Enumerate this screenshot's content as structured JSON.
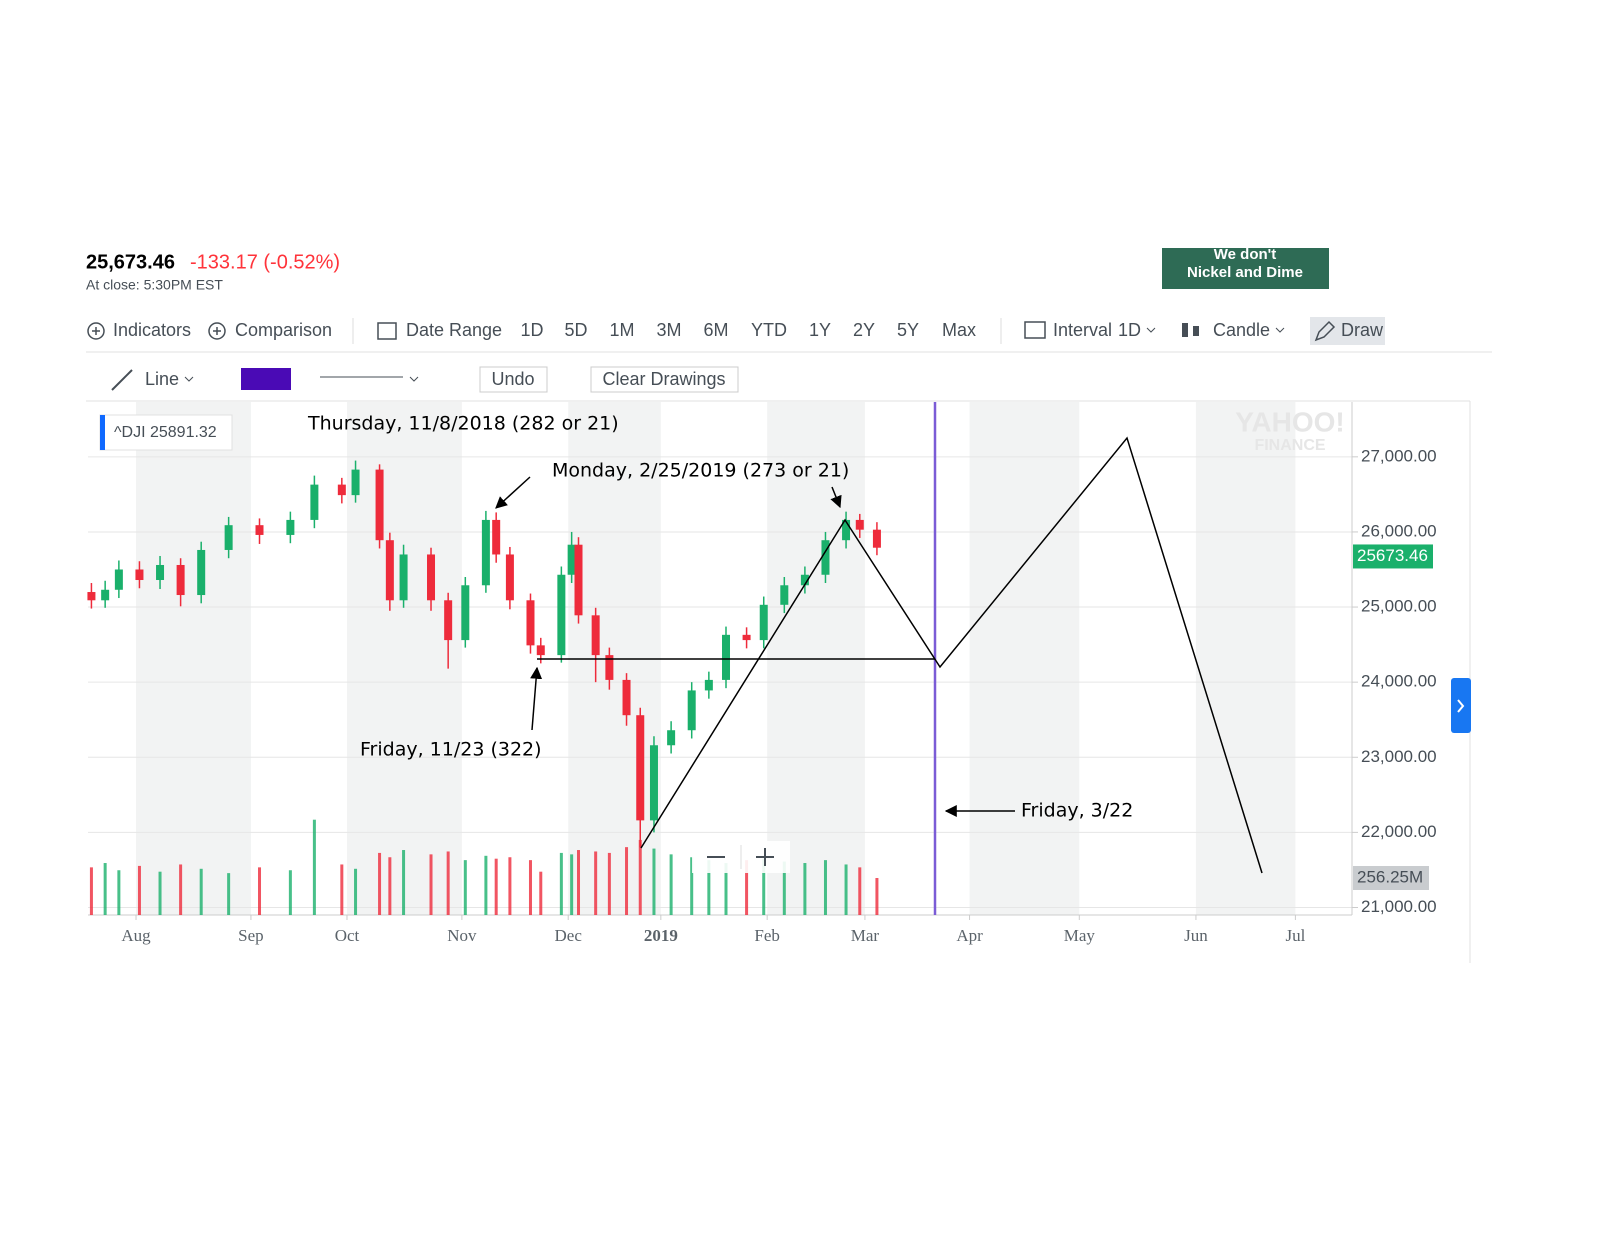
{
  "quote": {
    "price": "25,673.46",
    "change": "-133.17 (-0.52%)",
    "status": "At close: 5:30PM EST"
  },
  "ad": {
    "line1": "We don't",
    "line2": "Nickel and Dime"
  },
  "toolbar": {
    "indicators": "Indicators",
    "comparison": "Comparison",
    "date_range": "Date Range",
    "ranges": [
      "1D",
      "5D",
      "1M",
      "3M",
      "6M",
      "YTD",
      "1Y",
      "2Y",
      "5Y",
      "Max"
    ],
    "interval": "Interval",
    "interval_value": "1D",
    "chart_style": "Candle",
    "draw": "Draw"
  },
  "draw_toolbar": {
    "tool": "Line",
    "undo": "Undo",
    "clear": "Clear Drawings"
  },
  "chart_data": {
    "type": "candlestick",
    "x": [
      -13,
      -9,
      -5,
      1,
      7,
      13,
      19,
      27,
      36,
      45,
      52,
      60,
      64,
      71,
      74,
      78,
      86,
      91,
      96,
      102,
      105,
      109,
      115,
      118,
      124,
      127,
      129,
      134,
      138,
      143,
      147,
      151,
      156,
      162,
      167,
      172,
      178,
      183,
      189,
      195,
      201,
      207,
      211,
      216
    ],
    "series": [
      {
        "name": "^DJI",
        "up_color": "#1ab06b",
        "down_color": "#ee2b3b",
        "open": [
          25200,
          25090,
          25230,
          25500,
          25360,
          25560,
          25160,
          25760,
          26090,
          25960,
          26160,
          26630,
          26490,
          26830,
          25890,
          25090,
          25700,
          25090,
          24560,
          25290,
          26160,
          25700,
          25090,
          24490,
          24360,
          25430,
          25830,
          24890,
          24360,
          24030,
          23560,
          22160,
          23160,
          23360,
          23890,
          24030,
          24630,
          24560,
          25030,
          25290,
          25430,
          25890,
          26160,
          26030
        ],
        "high": [
          25320,
          25350,
          25620,
          25610,
          25680,
          25650,
          25870,
          26200,
          26180,
          26270,
          26750,
          26720,
          26950,
          26900,
          25990,
          25830,
          25790,
          25190,
          25400,
          26280,
          26260,
          25800,
          25180,
          24590,
          25540,
          26000,
          25930,
          24990,
          24460,
          24120,
          23660,
          23280,
          23480,
          24000,
          24140,
          24740,
          24730,
          25140,
          25400,
          25540,
          26000,
          26270,
          26240,
          26130
        ],
        "low": [
          24980,
          24990,
          25120,
          25250,
          25240,
          25010,
          25050,
          25650,
          25840,
          25850,
          26050,
          26380,
          26390,
          25780,
          24950,
          24990,
          24950,
          24180,
          24460,
          25190,
          25590,
          24970,
          24380,
          24250,
          24260,
          25320,
          24780,
          24000,
          23900,
          23420,
          21800,
          22000,
          23050,
          23250,
          23780,
          23920,
          24450,
          24450,
          24920,
          25180,
          25320,
          25780,
          25920,
          25690
        ],
        "close": [
          25090,
          25230,
          25500,
          25360,
          25560,
          25160,
          25760,
          26090,
          25960,
          26160,
          26630,
          26490,
          26830,
          25890,
          25090,
          25700,
          25090,
          24560,
          25290,
          26160,
          25700,
          25090,
          24490,
          24360,
          25430,
          25830,
          24890,
          24360,
          24030,
          23560,
          22160,
          23160,
          23360,
          23890,
          24030,
          24630,
          24560,
          25030,
          25290,
          25430,
          25890,
          26160,
          26030,
          25790
        ],
        "volume": [
          330,
          360,
          310,
          340,
          300,
          350,
          320,
          290,
          330,
          310,
          660,
          350,
          320,
          430,
          400,
          450,
          420,
          440,
          380,
          410,
          390,
          400,
          380,
          300,
          430,
          420,
          450,
          440,
          430,
          470,
          520,
          460,
          420,
          400,
          380,
          360,
          380,
          390,
          370,
          360,
          380,
          350,
          330,
          256.25
        ]
      }
    ],
    "hover_value": 25891.32,
    "last_price": 25673.46,
    "last_volume": {
      "value": 256.25,
      "label": "256.25M"
    },
    "volume_lim": [
      0,
      3553
    ],
    "xlim": [
      -14,
      354.5
    ],
    "xticks": [
      {
        "value": 0,
        "label": "Aug"
      },
      {
        "value": 33.5,
        "label": "Sep"
      },
      {
        "value": 61.5,
        "label": "Oct"
      },
      {
        "value": 95,
        "label": "Nov"
      },
      {
        "value": 126,
        "label": "Dec"
      },
      {
        "value": 153,
        "label": "2019"
      },
      {
        "value": 184,
        "label": "Feb"
      },
      {
        "value": 212.5,
        "label": "Mar"
      },
      {
        "value": 243,
        "label": "Apr"
      },
      {
        "value": 275,
        "label": "May"
      },
      {
        "value": 309,
        "label": "Jun"
      },
      {
        "value": 338,
        "label": "Jul"
      }
    ],
    "ylim": [
      20900,
      27730
    ],
    "yticks": [
      {
        "value": 21000,
        "label": "21,000.00"
      },
      {
        "value": 22000,
        "label": "22,000.00"
      },
      {
        "value": 23000,
        "label": "23,000.00"
      },
      {
        "value": 24000,
        "label": "24,000.00"
      },
      {
        "value": 25000,
        "label": "25,000.00"
      },
      {
        "value": 26000,
        "label": "26,000.00"
      },
      {
        "value": 27000,
        "label": "27,000.00"
      }
    ],
    "grid": true,
    "watermark": {
      "line1": "YAHOO!",
      "line2": "FINANCE"
    },
    "annotations": [
      "Thursday, 11/8/2018 (282 or 21)",
      "Monday, 2/25/2019 (273 or 21)",
      "Friday, 11/23 (322)",
      "Friday, 3/22"
    ]
  }
}
